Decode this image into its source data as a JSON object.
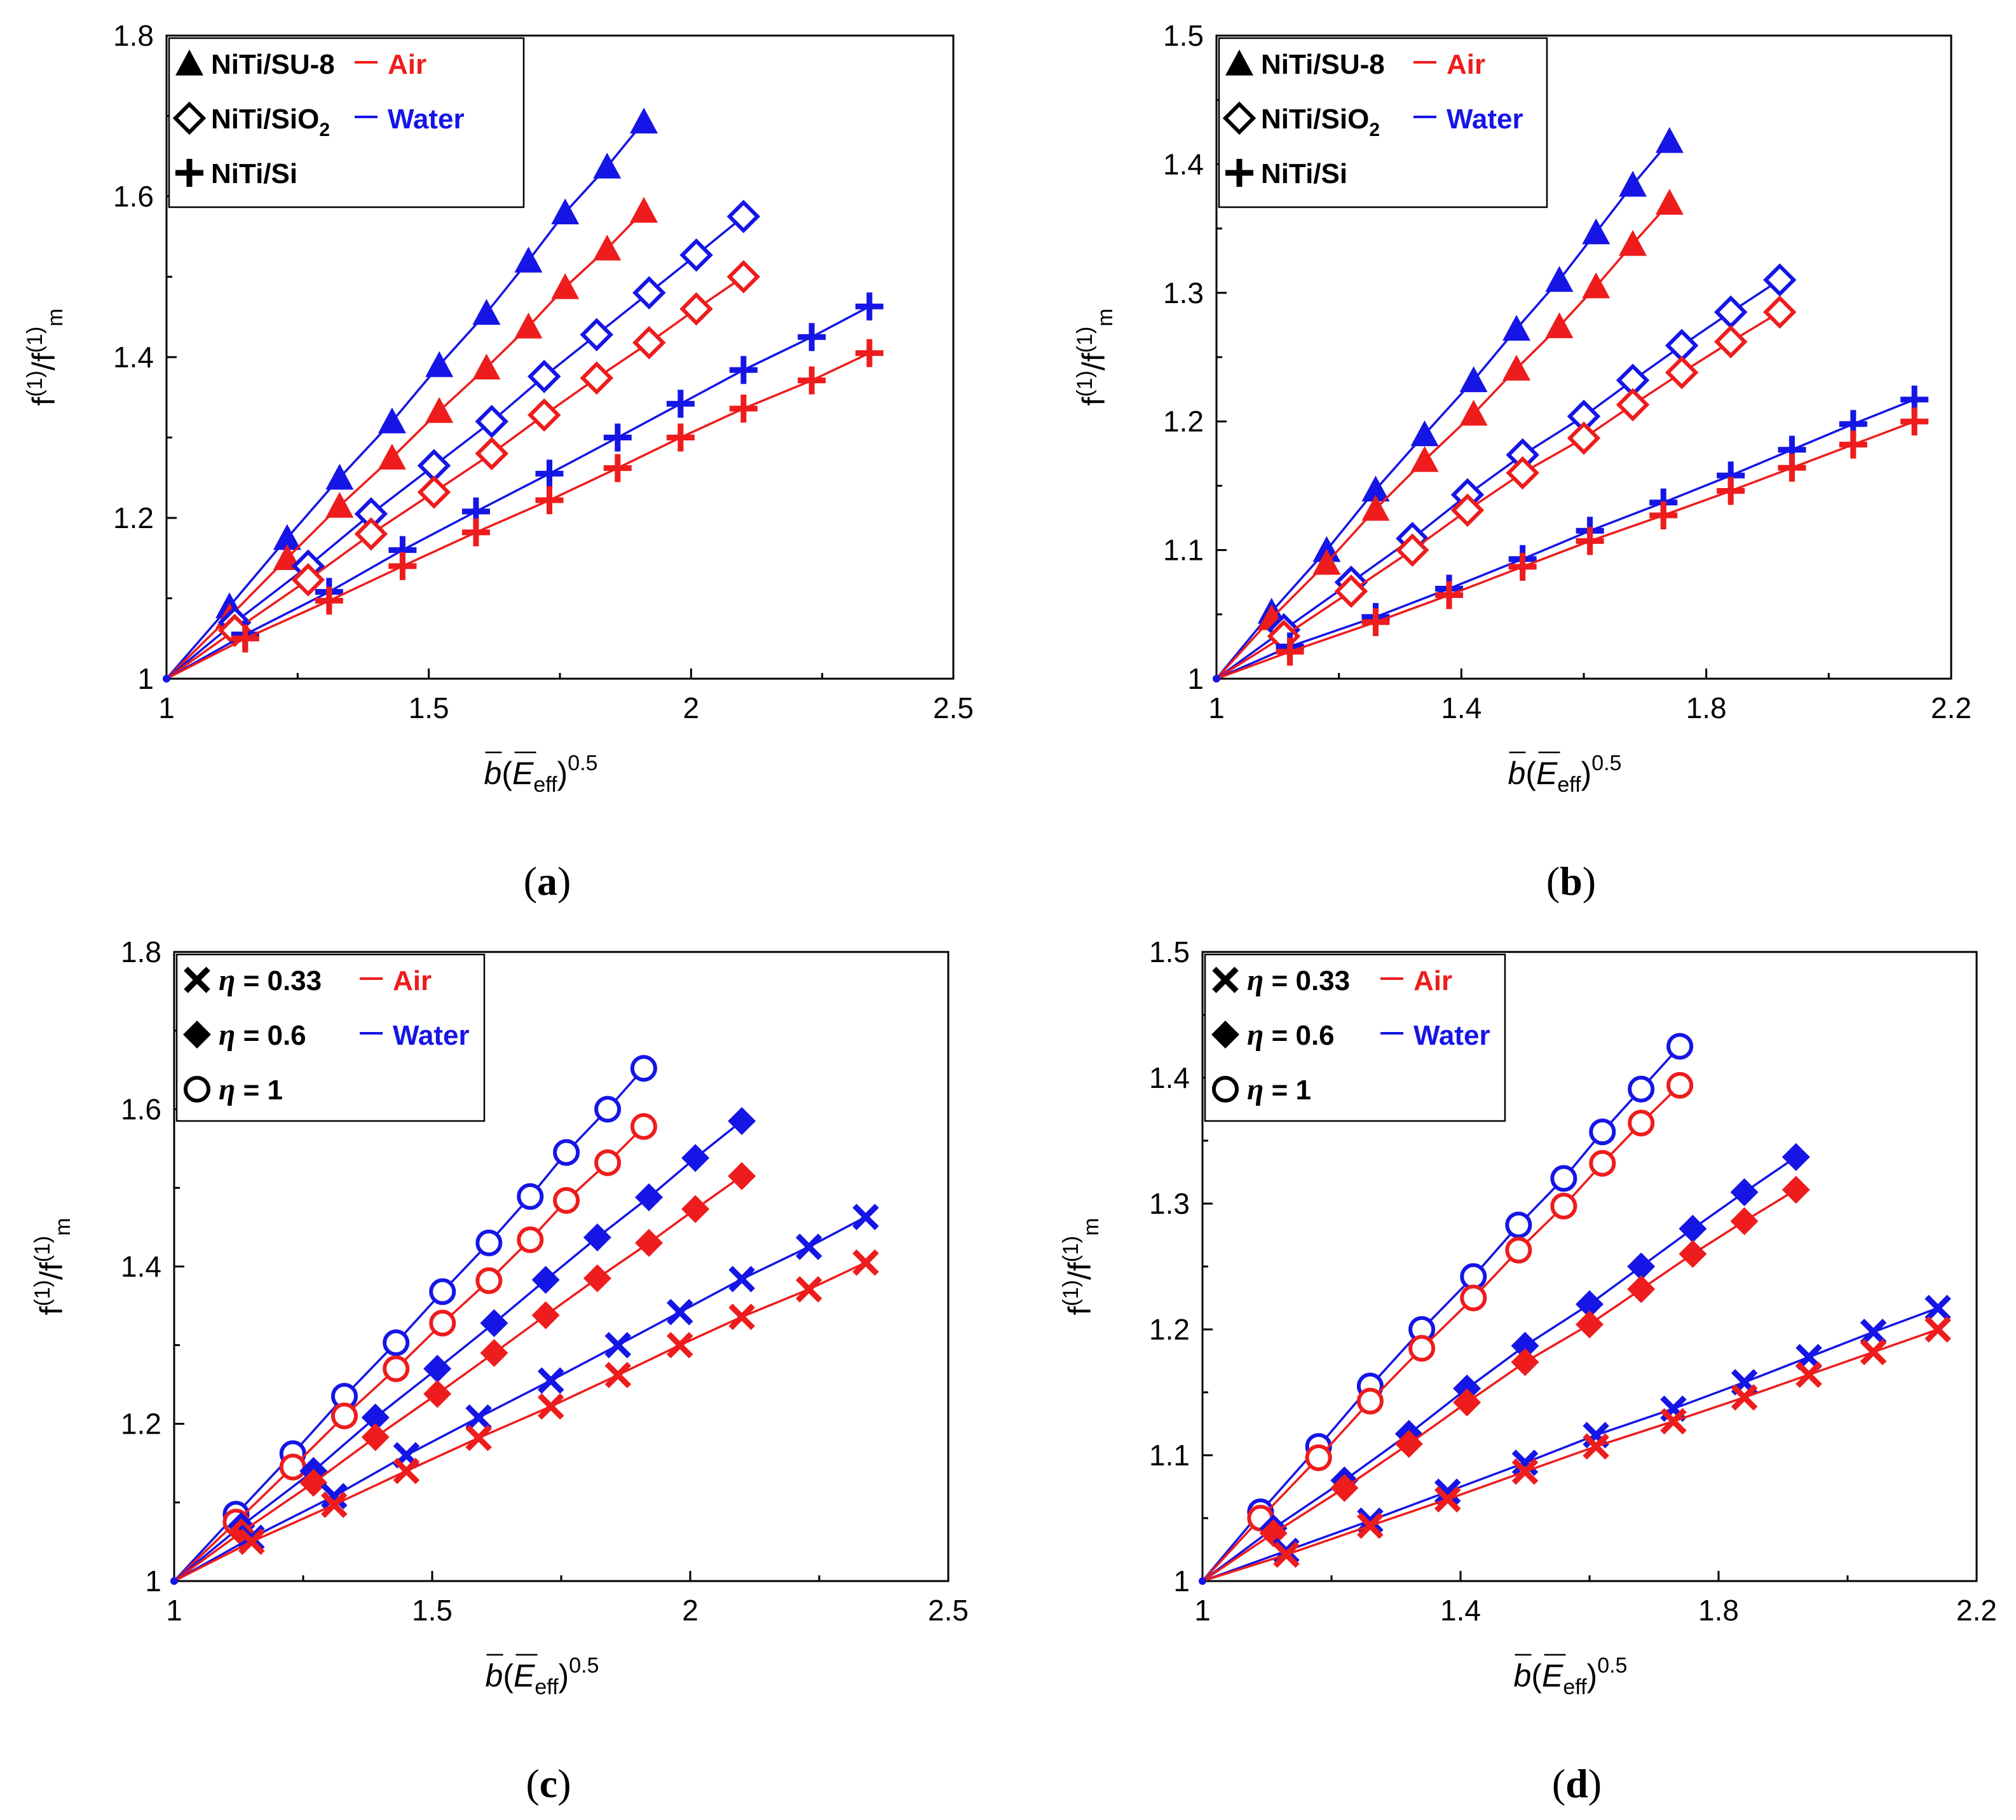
{
  "colors": {
    "air": "#ee1c1c",
    "water": "#1515e6",
    "axis": "#000000"
  },
  "common": {
    "xlabel_base": "b",
    "xlabel_mid": "(",
    "xlabel_E": "E",
    "xlabel_sub": "eff",
    "xlabel_close": ")",
    "xlabel_sup": "0.5",
    "ylabel_f": "f",
    "ylabel_sup": "(1)",
    "ylabel_slash": "/f",
    "ylabel_sub": "m"
  },
  "chart_data": [
    {
      "id": "a",
      "type": "line",
      "caption_open": "(",
      "caption_letter": "a",
      "caption_close": ")",
      "xlim": [
        1,
        2.5
      ],
      "ylim": [
        1,
        1.8
      ],
      "xticks": [
        "1",
        "1.5",
        "2",
        "2.5"
      ],
      "yticks": [
        "1",
        "1.2",
        "1.4",
        "1.6",
        "1.8"
      ],
      "legend": {
        "rows": [
          {
            "marker": "triangle",
            "label": "NiTi/SU-8",
            "medium": "Air",
            "medium_color": "air"
          },
          {
            "marker": "diamond-open",
            "label": "NiTi/SiO",
            "label_sub": "2",
            "medium": "Water",
            "medium_color": "water"
          },
          {
            "marker": "plus",
            "label": "NiTi/Si"
          }
        ]
      },
      "series": [
        {
          "name": "NiTi/SU-8 Water",
          "marker": "triangle",
          "color": "water",
          "x": [
            1.0,
            1.12,
            1.23,
            1.33,
            1.43,
            1.52,
            1.61,
            1.69,
            1.76,
            1.84,
            1.91
          ],
          "y": [
            1.0,
            1.09,
            1.175,
            1.25,
            1.32,
            1.39,
            1.455,
            1.52,
            1.58,
            1.637,
            1.693
          ]
        },
        {
          "name": "NiTi/SU-8 Air",
          "marker": "triangle",
          "color": "air",
          "x": [
            1.0,
            1.12,
            1.23,
            1.33,
            1.43,
            1.52,
            1.61,
            1.69,
            1.76,
            1.84,
            1.91
          ],
          "y": [
            1.0,
            1.077,
            1.15,
            1.215,
            1.275,
            1.333,
            1.387,
            1.438,
            1.487,
            1.535,
            1.582
          ]
        },
        {
          "name": "NiTi/SiO2 Water",
          "marker": "diamond-open",
          "color": "water",
          "x": [
            1.0,
            1.13,
            1.27,
            1.39,
            1.51,
            1.62,
            1.72,
            1.82,
            1.92,
            2.01,
            2.1
          ],
          "y": [
            1.0,
            1.07,
            1.14,
            1.205,
            1.265,
            1.32,
            1.376,
            1.428,
            1.48,
            1.527,
            1.575
          ]
        },
        {
          "name": "NiTi/SiO2 Air",
          "marker": "diamond-open",
          "color": "air",
          "x": [
            1.0,
            1.13,
            1.27,
            1.39,
            1.51,
            1.62,
            1.72,
            1.82,
            1.92,
            2.01,
            2.1
          ],
          "y": [
            1.0,
            1.06,
            1.123,
            1.18,
            1.232,
            1.28,
            1.328,
            1.374,
            1.418,
            1.46,
            1.5
          ]
        },
        {
          "name": "NiTi/Si Water",
          "marker": "plus",
          "color": "water",
          "x": [
            1.0,
            1.15,
            1.31,
            1.45,
            1.59,
            1.73,
            1.86,
            1.98,
            2.1,
            2.23,
            2.34
          ],
          "y": [
            1.0,
            1.055,
            1.108,
            1.16,
            1.208,
            1.255,
            1.3,
            1.342,
            1.384,
            1.425,
            1.463
          ]
        },
        {
          "name": "NiTi/Si Air",
          "marker": "plus",
          "color": "air",
          "x": [
            1.0,
            1.15,
            1.31,
            1.45,
            1.59,
            1.73,
            1.86,
            1.98,
            2.1,
            2.23,
            2.34
          ],
          "y": [
            1.0,
            1.05,
            1.097,
            1.14,
            1.182,
            1.222,
            1.262,
            1.3,
            1.336,
            1.371,
            1.405
          ]
        }
      ]
    },
    {
      "id": "b",
      "type": "line",
      "caption_open": "(",
      "caption_letter": "b",
      "caption_close": ")",
      "xlim": [
        1,
        2.2
      ],
      "ylim": [
        1,
        1.5
      ],
      "xticks": [
        "1",
        "1.4",
        "1.8",
        "2.2"
      ],
      "yticks": [
        "1",
        "1.1",
        "1.2",
        "1.3",
        "1.4",
        "1.5"
      ],
      "legend": {
        "rows": [
          {
            "marker": "triangle",
            "label": "NiTi/SU-8",
            "medium": "Air",
            "medium_color": "air"
          },
          {
            "marker": "diamond-open",
            "label": "NiTi/SiO",
            "label_sub": "2",
            "medium": "Water",
            "medium_color": "water"
          },
          {
            "marker": "plus",
            "label": "NiTi/Si"
          }
        ]
      },
      "series": [
        {
          "name": "NiTi/SU-8 Water",
          "marker": "triangle",
          "color": "water",
          "x": [
            1.0,
            1.09,
            1.18,
            1.26,
            1.34,
            1.42,
            1.49,
            1.56,
            1.62,
            1.68,
            1.74
          ],
          "y": [
            1.0,
            1.052,
            1.1,
            1.147,
            1.19,
            1.232,
            1.272,
            1.31,
            1.347,
            1.384,
            1.418
          ]
        },
        {
          "name": "NiTi/SU-8 Air",
          "marker": "triangle",
          "color": "air",
          "x": [
            1.0,
            1.09,
            1.18,
            1.26,
            1.34,
            1.42,
            1.49,
            1.56,
            1.62,
            1.68,
            1.74
          ],
          "y": [
            1.0,
            1.047,
            1.09,
            1.132,
            1.17,
            1.206,
            1.241,
            1.274,
            1.305,
            1.338,
            1.37
          ]
        },
        {
          "name": "NiTi/SiO2 Water",
          "marker": "diamond-open",
          "color": "water",
          "x": [
            1.0,
            1.11,
            1.22,
            1.32,
            1.41,
            1.5,
            1.6,
            1.68,
            1.76,
            1.84,
            1.92
          ],
          "y": [
            1.0,
            1.038,
            1.075,
            1.109,
            1.143,
            1.174,
            1.204,
            1.232,
            1.259,
            1.285,
            1.31
          ]
        },
        {
          "name": "NiTi/SiO2 Air",
          "marker": "diamond-open",
          "color": "air",
          "x": [
            1.0,
            1.11,
            1.22,
            1.32,
            1.41,
            1.5,
            1.6,
            1.68,
            1.76,
            1.84,
            1.92
          ],
          "y": [
            1.0,
            1.033,
            1.068,
            1.1,
            1.131,
            1.16,
            1.187,
            1.213,
            1.238,
            1.262,
            1.285
          ]
        },
        {
          "name": "NiTi/Si Water",
          "marker": "plus",
          "color": "water",
          "x": [
            1.0,
            1.12,
            1.26,
            1.38,
            1.5,
            1.61,
            1.73,
            1.84,
            1.94,
            2.04,
            2.14
          ],
          "y": [
            1.0,
            1.025,
            1.048,
            1.07,
            1.093,
            1.115,
            1.137,
            1.158,
            1.178,
            1.198,
            1.217
          ]
        },
        {
          "name": "NiTi/Si Air",
          "marker": "plus",
          "color": "air",
          "x": [
            1.0,
            1.12,
            1.26,
            1.38,
            1.5,
            1.61,
            1.73,
            1.84,
            1.94,
            2.04,
            2.14
          ],
          "y": [
            1.0,
            1.021,
            1.044,
            1.065,
            1.087,
            1.107,
            1.127,
            1.146,
            1.164,
            1.182,
            1.2
          ]
        }
      ]
    },
    {
      "id": "c",
      "type": "line",
      "caption_open": "(",
      "caption_letter": "c",
      "caption_close": ")",
      "xlim": [
        1,
        2.5
      ],
      "ylim": [
        1,
        1.8
      ],
      "xticks": [
        "1",
        "1.5",
        "2",
        "2.5"
      ],
      "yticks": [
        "1",
        "1.2",
        "1.4",
        "1.6",
        "1.8"
      ],
      "legend": {
        "rows": [
          {
            "marker": "cross",
            "eta": "η",
            "label": " = 0.33",
            "medium": "Air",
            "medium_color": "air"
          },
          {
            "marker": "diamond-filled",
            "eta": "η",
            "label": " = 0.6",
            "medium": "Water",
            "medium_color": "water"
          },
          {
            "marker": "circle-open",
            "eta": "η",
            "label": " = 1"
          }
        ]
      },
      "series": [
        {
          "name": "eta=1 Water",
          "marker": "circle-open",
          "color": "water",
          "x": [
            1.0,
            1.12,
            1.23,
            1.33,
            1.43,
            1.52,
            1.61,
            1.69,
            1.76,
            1.84,
            1.91
          ],
          "y": [
            1.0,
            1.085,
            1.162,
            1.235,
            1.303,
            1.368,
            1.43,
            1.489,
            1.545,
            1.6,
            1.652
          ]
        },
        {
          "name": "eta=1 Air",
          "marker": "circle-open",
          "color": "air",
          "x": [
            1.0,
            1.12,
            1.23,
            1.33,
            1.43,
            1.52,
            1.61,
            1.69,
            1.76,
            1.84,
            1.91
          ],
          "y": [
            1.0,
            1.075,
            1.145,
            1.21,
            1.27,
            1.328,
            1.382,
            1.434,
            1.484,
            1.532,
            1.578
          ]
        },
        {
          "name": "eta=0.6 Water",
          "marker": "diamond-filled",
          "color": "water",
          "x": [
            1.0,
            1.13,
            1.27,
            1.39,
            1.51,
            1.62,
            1.72,
            1.82,
            1.92,
            2.01,
            2.1
          ],
          "y": [
            1.0,
            1.07,
            1.14,
            1.208,
            1.27,
            1.328,
            1.383,
            1.437,
            1.488,
            1.538,
            1.585
          ]
        },
        {
          "name": "eta=0.6 Air",
          "marker": "diamond-filled",
          "color": "air",
          "x": [
            1.0,
            1.13,
            1.27,
            1.39,
            1.51,
            1.62,
            1.72,
            1.82,
            1.92,
            2.01,
            2.1
          ],
          "y": [
            1.0,
            1.062,
            1.125,
            1.183,
            1.238,
            1.29,
            1.338,
            1.385,
            1.43,
            1.473,
            1.515
          ]
        },
        {
          "name": "eta=0.33 Water",
          "marker": "cross",
          "color": "water",
          "x": [
            1.0,
            1.15,
            1.31,
            1.45,
            1.59,
            1.73,
            1.86,
            1.98,
            2.1,
            2.23,
            2.34
          ],
          "y": [
            1.0,
            1.055,
            1.108,
            1.16,
            1.208,
            1.255,
            1.3,
            1.342,
            1.384,
            1.425,
            1.463
          ]
        },
        {
          "name": "eta=0.33 Air",
          "marker": "cross",
          "color": "air",
          "x": [
            1.0,
            1.15,
            1.31,
            1.45,
            1.59,
            1.73,
            1.86,
            1.98,
            2.1,
            2.23,
            2.34
          ],
          "y": [
            1.0,
            1.05,
            1.097,
            1.14,
            1.182,
            1.222,
            1.262,
            1.3,
            1.336,
            1.371,
            1.405
          ]
        }
      ]
    },
    {
      "id": "d",
      "type": "line",
      "caption_open": "(",
      "caption_letter": "d",
      "caption_close": ")",
      "xlim": [
        1,
        2.2
      ],
      "ylim": [
        1,
        1.5
      ],
      "xticks": [
        "1",
        "1.4",
        "1.8",
        "2.2"
      ],
      "yticks": [
        "1",
        "1.1",
        "1.2",
        "1.3",
        "1.4",
        "1.5"
      ],
      "legend": {
        "rows": [
          {
            "marker": "cross",
            "eta": "η",
            "label": " = 0.33",
            "medium": "Air",
            "medium_color": "air"
          },
          {
            "marker": "diamond-filled",
            "eta": "η",
            "label": " = 0.6",
            "medium": "Water",
            "medium_color": "water"
          },
          {
            "marker": "circle-open",
            "eta": "η",
            "label": " = 1"
          }
        ]
      },
      "series": [
        {
          "name": "eta=1 Water",
          "marker": "circle-open",
          "color": "water",
          "x": [
            1.0,
            1.09,
            1.18,
            1.26,
            1.34,
            1.42,
            1.49,
            1.56,
            1.62,
            1.68,
            1.74
          ],
          "y": [
            1.0,
            1.055,
            1.107,
            1.155,
            1.2,
            1.242,
            1.283,
            1.32,
            1.357,
            1.391,
            1.425
          ]
        },
        {
          "name": "eta=1 Air",
          "marker": "circle-open",
          "color": "air",
          "x": [
            1.0,
            1.09,
            1.18,
            1.26,
            1.34,
            1.42,
            1.49,
            1.56,
            1.62,
            1.68,
            1.74
          ],
          "y": [
            1.0,
            1.05,
            1.098,
            1.143,
            1.185,
            1.225,
            1.263,
            1.298,
            1.332,
            1.364,
            1.394
          ]
        },
        {
          "name": "eta=0.6 Water",
          "marker": "diamond-filled",
          "color": "water",
          "x": [
            1.0,
            1.11,
            1.22,
            1.32,
            1.41,
            1.5,
            1.6,
            1.68,
            1.76,
            1.84,
            1.92
          ],
          "y": [
            1.0,
            1.042,
            1.08,
            1.117,
            1.153,
            1.187,
            1.22,
            1.25,
            1.28,
            1.309,
            1.337
          ]
        },
        {
          "name": "eta=0.6 Air",
          "marker": "diamond-filled",
          "color": "air",
          "x": [
            1.0,
            1.11,
            1.22,
            1.32,
            1.41,
            1.5,
            1.6,
            1.68,
            1.76,
            1.84,
            1.92
          ],
          "y": [
            1.0,
            1.038,
            1.074,
            1.109,
            1.142,
            1.174,
            1.204,
            1.232,
            1.26,
            1.286,
            1.311
          ]
        },
        {
          "name": "eta=0.33 Water",
          "marker": "cross",
          "color": "water",
          "x": [
            1.0,
            1.13,
            1.26,
            1.38,
            1.5,
            1.61,
            1.73,
            1.84,
            1.94,
            2.04,
            2.14
          ],
          "y": [
            1.0,
            1.024,
            1.048,
            1.071,
            1.094,
            1.116,
            1.137,
            1.158,
            1.178,
            1.198,
            1.217
          ]
        },
        {
          "name": "eta=0.33 Air",
          "marker": "cross",
          "color": "air",
          "x": [
            1.0,
            1.13,
            1.26,
            1.38,
            1.5,
            1.61,
            1.73,
            1.84,
            1.94,
            2.04,
            2.14
          ],
          "y": [
            1.0,
            1.021,
            1.044,
            1.065,
            1.087,
            1.107,
            1.127,
            1.146,
            1.164,
            1.182,
            1.2
          ]
        }
      ]
    }
  ]
}
